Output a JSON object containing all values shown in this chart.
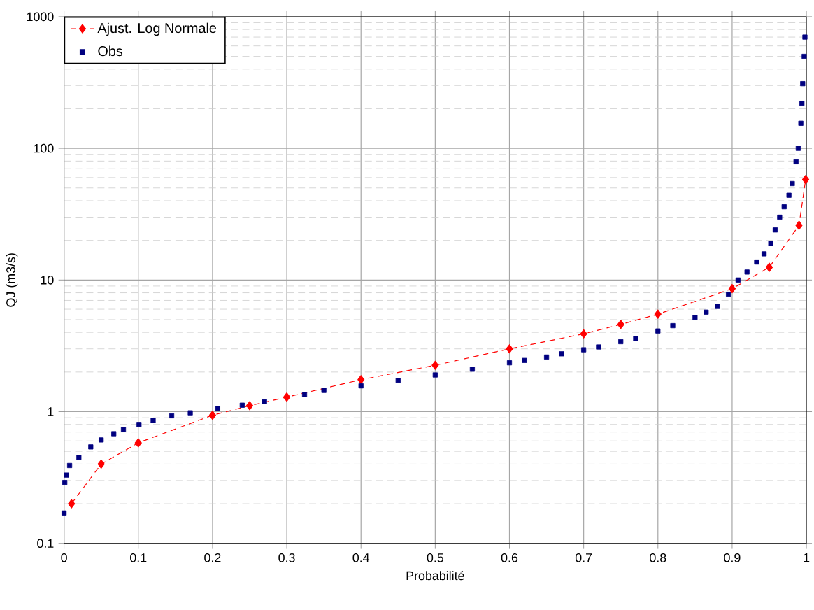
{
  "chart_data": {
    "type": "line",
    "xlabel": "Probabilité",
    "ylabel": "QJ (m3/s)",
    "xlim": [
      0,
      1
    ],
    "ylim": [
      0.1,
      1000
    ],
    "log": "y",
    "grid": true,
    "legend": "top left",
    "xticks": [
      0,
      0.1,
      0.2,
      0.3,
      0.4,
      0.5,
      0.6,
      0.7,
      0.8,
      0.9,
      1
    ],
    "yticks": [
      0.1,
      1,
      10,
      100,
      1000
    ],
    "series": [
      {
        "name": "Ajust. Log Normale",
        "color": "#ff0000",
        "marker": "diamond",
        "line_style": "dashed",
        "x": [
          0.01,
          0.05,
          0.1,
          0.2,
          0.25,
          0.3,
          0.4,
          0.5,
          0.6,
          0.7,
          0.75,
          0.8,
          0.9,
          0.95,
          0.99,
          0.999
        ],
        "values": [
          0.2,
          0.4,
          0.58,
          0.94,
          1.11,
          1.29,
          1.75,
          2.25,
          3.0,
          3.9,
          4.6,
          5.5,
          8.6,
          12.5,
          26,
          58
        ]
      },
      {
        "name": "Obs",
        "type": "scatter",
        "color": "#000080",
        "marker": "square",
        "x": [
          0,
          0.001,
          0.003,
          0.0075,
          0.02,
          0.036,
          0.05,
          0.067,
          0.08,
          0.101,
          0.12,
          0.145,
          0.17,
          0.207,
          0.24,
          0.27,
          0.324,
          0.35,
          0.4,
          0.45,
          0.5,
          0.55,
          0.6,
          0.62,
          0.65,
          0.67,
          0.7,
          0.72,
          0.75,
          0.77,
          0.8,
          0.82,
          0.85,
          0.865,
          0.88,
          0.895,
          0.908,
          0.92,
          0.933,
          0.943,
          0.952,
          0.958,
          0.964,
          0.97,
          0.9765,
          0.981,
          0.986,
          0.989,
          0.9925,
          0.994,
          0.995,
          0.997,
          0.998
        ],
        "values": [
          0.17,
          0.29,
          0.33,
          0.39,
          0.45,
          0.54,
          0.61,
          0.68,
          0.73,
          0.8,
          0.86,
          0.93,
          0.98,
          1.06,
          1.12,
          1.19,
          1.35,
          1.45,
          1.57,
          1.73,
          1.9,
          2.1,
          2.35,
          2.45,
          2.6,
          2.75,
          2.95,
          3.1,
          3.4,
          3.6,
          4.1,
          4.5,
          5.2,
          5.7,
          6.3,
          7.8,
          10,
          11.5,
          13.7,
          15.8,
          19,
          24,
          30,
          36,
          44,
          54,
          79,
          100,
          155,
          220,
          310,
          500,
          700
        ]
      }
    ]
  }
}
